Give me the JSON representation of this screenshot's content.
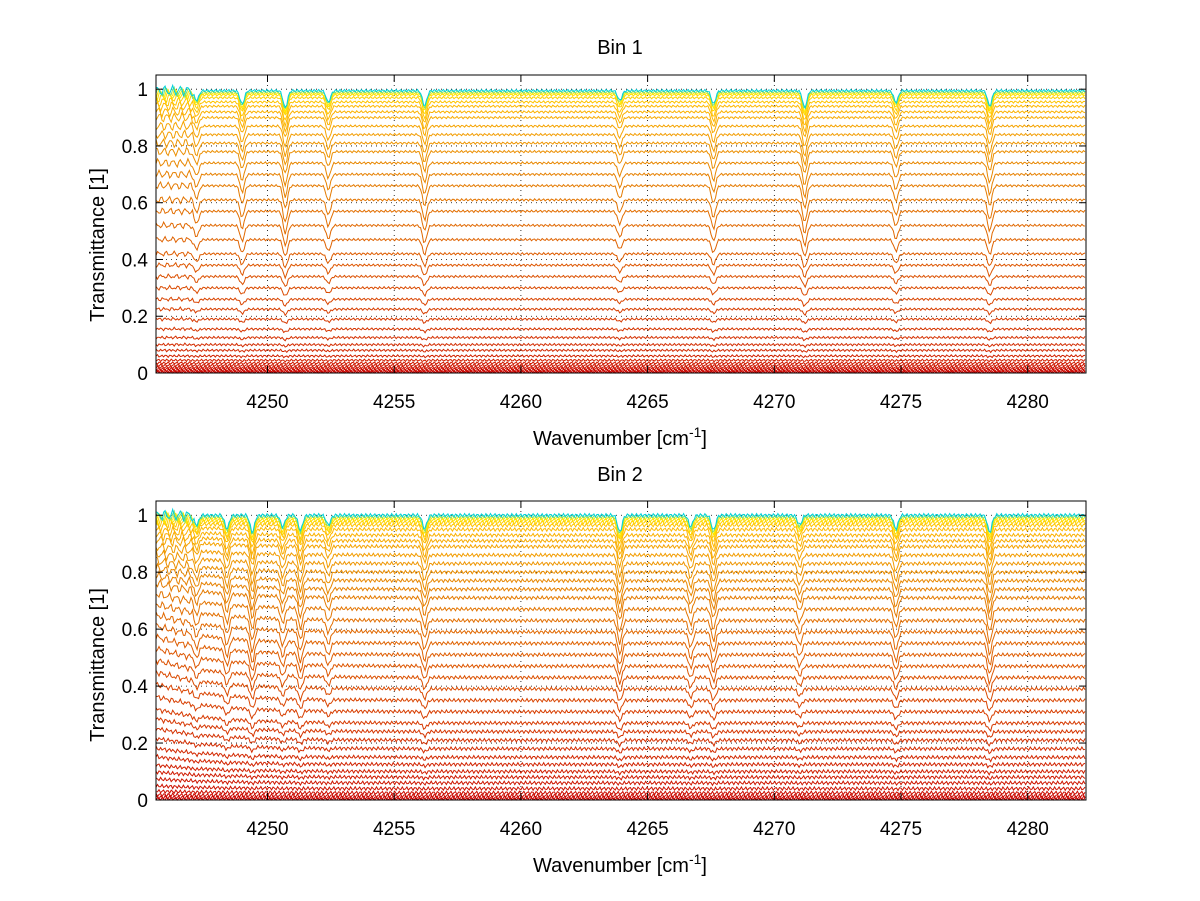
{
  "chart_data": [
    {
      "type": "line",
      "title": "Bin 1",
      "xlabel": "Wavenumber [cm",
      "xlabel_sup": "-1",
      "xlabel_end": "]",
      "ylabel": "Transmittance [1]",
      "xlim": [
        4245.6,
        4282.3
      ],
      "ylim": [
        0,
        1.05
      ],
      "xticks": [
        4250,
        4255,
        4260,
        4265,
        4270,
        4275,
        4280
      ],
      "xtick_labels": [
        "4250",
        "4255",
        "4260",
        "4265",
        "4270",
        "4275",
        "4280"
      ],
      "yticks": [
        0,
        0.2,
        0.4,
        0.6,
        0.8,
        1
      ],
      "ytick_labels": [
        "0",
        "0.2",
        "0.4",
        "0.6",
        "0.8",
        "1"
      ],
      "grid": "dotted",
      "series_count": 40,
      "series_colormap": "red-orange-yellow-cyan",
      "absorption_lines_cm-1": [
        4247.2,
        4249.0,
        4250.7,
        4252.4,
        4256.2,
        4263.9,
        4267.6,
        4271.2,
        4274.8,
        4278.5
      ],
      "transmittance_levels_at_4260": [
        0.003,
        0.006,
        0.01,
        0.015,
        0.02,
        0.027,
        0.035,
        0.045,
        0.06,
        0.08,
        0.1,
        0.125,
        0.155,
        0.19,
        0.225,
        0.26,
        0.3,
        0.34,
        0.38,
        0.42,
        0.47,
        0.52,
        0.57,
        0.61,
        0.66,
        0.7,
        0.74,
        0.78,
        0.81,
        0.84,
        0.87,
        0.9,
        0.92,
        0.94,
        0.955,
        0.97,
        0.98,
        0.985,
        0.99,
        0.995
      ]
    },
    {
      "type": "line",
      "title": "Bin 2",
      "xlabel": "Wavenumber [cm",
      "xlabel_sup": "-1",
      "xlabel_end": "]",
      "ylabel": "Transmittance [1]",
      "xlim": [
        4245.6,
        4282.3
      ],
      "ylim": [
        0,
        1.05
      ],
      "xticks": [
        4250,
        4255,
        4260,
        4265,
        4270,
        4275,
        4280
      ],
      "xtick_labels": [
        "4250",
        "4255",
        "4260",
        "4265",
        "4270",
        "4275",
        "4280"
      ],
      "yticks": [
        0,
        0.2,
        0.4,
        0.6,
        0.8,
        1
      ],
      "ytick_labels": [
        "0",
        "0.2",
        "0.4",
        "0.6",
        "0.8",
        "1"
      ],
      "grid": "dotted",
      "series_count": 40,
      "series_colormap": "red-orange-yellow-cyan",
      "absorption_lines_cm-1": [
        4247.2,
        4248.4,
        4249.4,
        4250.6,
        4251.3,
        4252.4,
        4256.2,
        4263.9,
        4266.7,
        4267.6,
        4271.0,
        4274.8,
        4278.5
      ],
      "transmittance_levels_at_4260": [
        0.003,
        0.008,
        0.015,
        0.025,
        0.04,
        0.06,
        0.08,
        0.1,
        0.125,
        0.15,
        0.18,
        0.21,
        0.24,
        0.27,
        0.31,
        0.35,
        0.39,
        0.43,
        0.47,
        0.51,
        0.55,
        0.59,
        0.63,
        0.67,
        0.71,
        0.74,
        0.77,
        0.8,
        0.83,
        0.86,
        0.89,
        0.91,
        0.93,
        0.95,
        0.965,
        0.975,
        0.983,
        0.99,
        0.995,
        1.0
      ]
    }
  ]
}
